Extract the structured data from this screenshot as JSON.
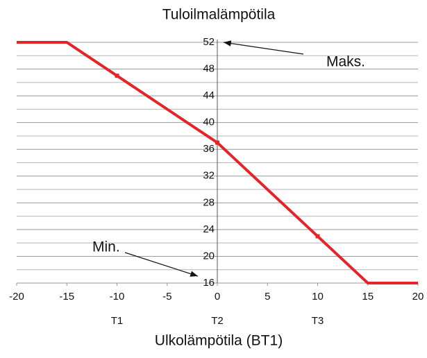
{
  "chart_data": {
    "type": "line",
    "title": "Tuloilmalämpötila",
    "xlabel": "Ulkolämpötila  (BT1)",
    "x": [
      -20,
      -15,
      -10,
      0,
      10,
      15,
      20
    ],
    "series": [
      {
        "color": "#e5242a",
        "values": [
          52,
          52,
          47,
          37,
          23,
          16,
          16
        ]
      }
    ],
    "xlim": [
      -20,
      20
    ],
    "xticks": [
      -20,
      -15,
      -10,
      -5,
      0,
      5,
      10,
      15,
      20
    ],
    "ylim": [
      16,
      52
    ],
    "yticks": [
      16,
      20,
      24,
      28,
      32,
      36,
      40,
      44,
      48,
      52
    ],
    "yminorticks": [
      18,
      22,
      26,
      30,
      34,
      38,
      42,
      46,
      50
    ],
    "x_sublabels": [
      {
        "value": -10,
        "label": "T1"
      },
      {
        "value": 0,
        "label": "T2"
      },
      {
        "value": 10,
        "label": "T3"
      }
    ],
    "annotations": [
      "Maks.",
      "Min."
    ],
    "grid": true
  }
}
